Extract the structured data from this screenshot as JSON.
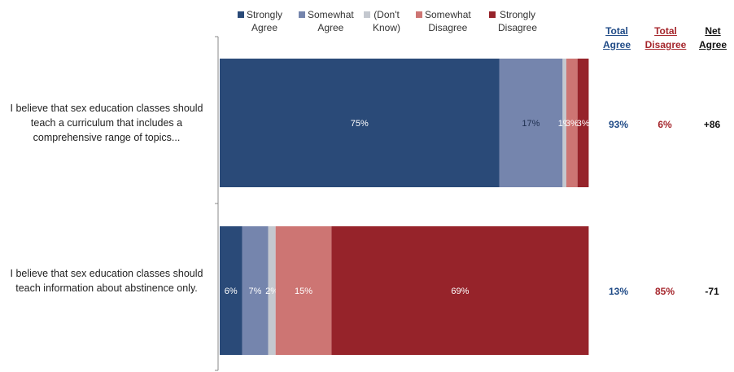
{
  "chart_data": {
    "type": "bar",
    "orientation": "horizontal",
    "stacked": true,
    "categories": [
      "I believe that sex education classes should teach a curriculum that includes a comprehensive range of topics...",
      "I believe that sex education classes should teach information about abstinence only."
    ],
    "series": [
      {
        "name": "Strongly Agree",
        "color": "#2a4a78",
        "values": [
          75,
          6
        ],
        "labels": [
          "75%",
          "6%"
        ]
      },
      {
        "name": "Somewhat Agree",
        "color": "#7585ad",
        "values": [
          17,
          7
        ],
        "labels": [
          "17%",
          "7%"
        ]
      },
      {
        "name": "(Don't Know)",
        "color": "#c4c8cf",
        "values": [
          1,
          2
        ],
        "labels": [
          "1%",
          "2%"
        ]
      },
      {
        "name": "Somewhat Disagree",
        "color": "#cd7573",
        "values": [
          3,
          15
        ],
        "labels": [
          "3%",
          "15%"
        ]
      },
      {
        "name": "Strongly Disagree",
        "color": "#96232a",
        "values": [
          3,
          69
        ],
        "labels": [
          "3%",
          "69%"
        ]
      }
    ],
    "xlim": [
      0,
      100
    ],
    "legend_position": "top",
    "grid": false
  },
  "summary": {
    "headers": [
      {
        "text": "Total Agree",
        "color": "#1f4a86"
      },
      {
        "text": "Total Disagree",
        "color": "#a5262c"
      },
      {
        "text": "Net Agree",
        "color": "#111111"
      }
    ],
    "rows": [
      {
        "total_agree": "93%",
        "total_disagree": "6%",
        "net_agree": "+86"
      },
      {
        "total_agree": "13%",
        "total_disagree": "85%",
        "net_agree": "-71"
      }
    ]
  },
  "legend_labels": [
    {
      "line1": "Strongly",
      "line2": "Agree"
    },
    {
      "line1": "Somewhat",
      "line2": "Agree"
    },
    {
      "line1": "(Don't",
      "line2": "Know)"
    },
    {
      "line1": "Somewhat",
      "line2": "Disagree"
    },
    {
      "line1": "Strongly",
      "line2": "Disagree"
    }
  ]
}
